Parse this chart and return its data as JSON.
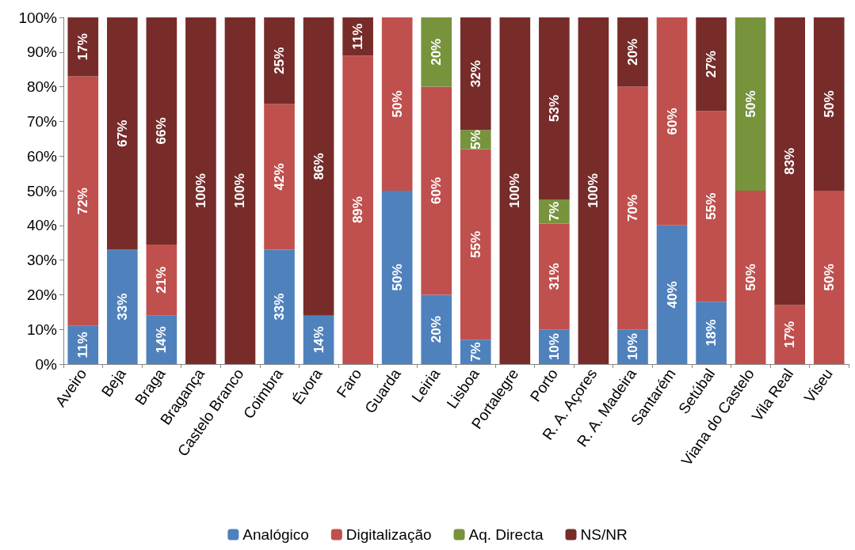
{
  "chart_data": {
    "type": "bar",
    "stacked": true,
    "categories": [
      "Aveiro",
      "Beja",
      "Braga",
      "Bragança",
      "Castelo Branco",
      "Coimbra",
      "Évora",
      "Faro",
      "Guarda",
      "Leiria",
      "Lisboa",
      "Portalegre",
      "Porto",
      "R. A. Açores",
      "R. A. Madeira",
      "Santarém",
      "Setúbal",
      "Viana do Castelo",
      "Vila Real",
      "Viseu"
    ],
    "series": [
      {
        "name": "Analógico",
        "color": "#4f81bd",
        "values": [
          11,
          33,
          14,
          null,
          null,
          33,
          14,
          null,
          50,
          20,
          7,
          null,
          10,
          null,
          10,
          40,
          18,
          null,
          null,
          null
        ],
        "value_labels": [
          "11%",
          "33%",
          "14%",
          null,
          null,
          "33%",
          "14%",
          null,
          "50%",
          "20%",
          "7%",
          null,
          "10%",
          null,
          "10%",
          "40%",
          "18%",
          null,
          null,
          null
        ]
      },
      {
        "name": "Digitalização",
        "color": "#c0504d",
        "values": [
          72,
          null,
          20.5,
          null,
          null,
          42,
          null,
          89,
          50,
          60,
          55,
          null,
          30.5,
          null,
          70,
          60,
          55,
          50,
          17,
          50
        ],
        "value_labels": [
          "72%",
          null,
          "21%",
          null,
          null,
          "42%",
          null,
          "89%",
          "50%",
          "60%",
          "55%",
          null,
          "31%",
          null,
          "70%",
          "60%",
          "55%",
          "50%",
          "17%",
          "50%"
        ]
      },
      {
        "name": "Aq. Directa",
        "color": "#77933c",
        "values": [
          null,
          null,
          null,
          null,
          null,
          null,
          null,
          null,
          null,
          20,
          5.5,
          null,
          7,
          null,
          null,
          null,
          null,
          50,
          null,
          null
        ],
        "value_labels": [
          null,
          null,
          null,
          null,
          null,
          null,
          null,
          null,
          null,
          "20%",
          "5%",
          null,
          "7%",
          null,
          null,
          null,
          null,
          "50%",
          null,
          null
        ]
      },
      {
        "name": "NS/NR",
        "color": "#772c2a",
        "values": [
          17,
          67,
          65.5,
          100,
          100,
          25,
          86,
          11,
          null,
          null,
          32.5,
          100,
          52.5,
          100,
          20,
          null,
          27,
          null,
          83,
          50
        ],
        "value_labels": [
          "17%",
          "67%",
          "66%",
          "100%",
          "100%",
          "25%",
          "86%",
          "11%",
          null,
          null,
          "32%",
          "100%",
          "53%",
          "100%",
          "20%",
          null,
          "27%",
          null,
          "83%",
          "50%"
        ]
      }
    ],
    "ylim": [
      0,
      100
    ],
    "yticks": [
      {
        "value": 0,
        "label": "0%"
      },
      {
        "value": 10,
        "label": "10%"
      },
      {
        "value": 20,
        "label": "20%"
      },
      {
        "value": 30,
        "label": "30%"
      },
      {
        "value": 40,
        "label": "40%"
      },
      {
        "value": 50,
        "label": "50%"
      },
      {
        "value": 60,
        "label": "60%"
      },
      {
        "value": 70,
        "label": "70%"
      },
      {
        "value": 80,
        "label": "80%"
      },
      {
        "value": 90,
        "label": "90%"
      },
      {
        "value": 100,
        "label": "100%"
      }
    ],
    "legend": "bottom",
    "grid": false
  }
}
